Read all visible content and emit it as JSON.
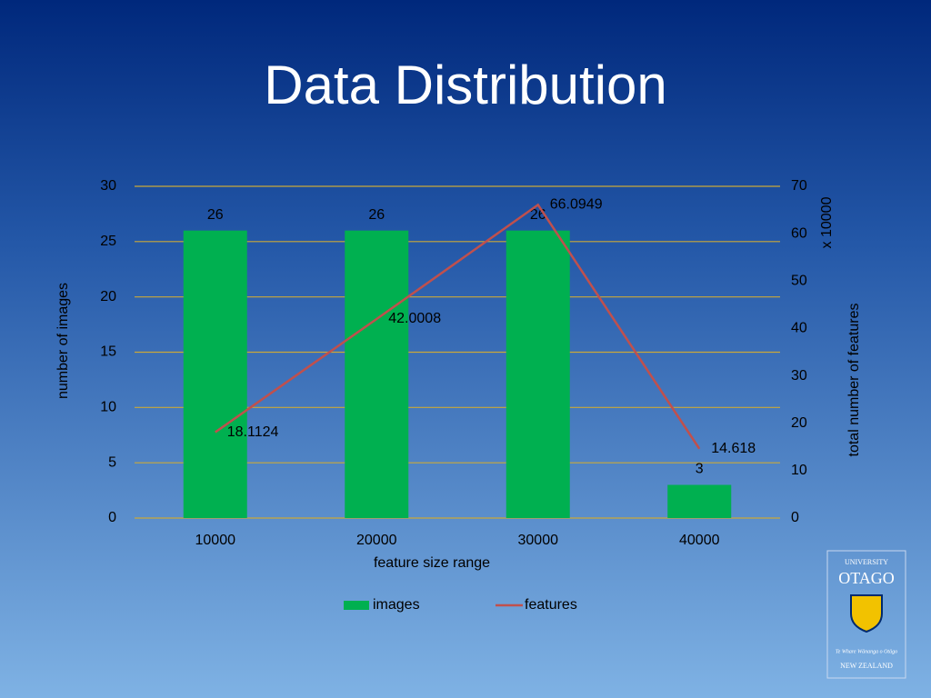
{
  "chart_data": {
    "type": "bar",
    "title": "Data Distribution",
    "x_label": "feature size range",
    "y_label": "number of images",
    "y2_label": "total number of features",
    "y2_multiplier_label": "x 10000",
    "categories": [
      "10000",
      "20000",
      "30000",
      "40000"
    ],
    "series": [
      {
        "name": "images",
        "type": "bar",
        "color": "#00b050",
        "values": [
          26,
          26,
          26,
          3
        ]
      },
      {
        "name": "features",
        "type": "line",
        "color": "#c0504d",
        "values": [
          18.1124,
          42.0008,
          66.0949,
          14.618
        ],
        "axis": "y2"
      }
    ],
    "ylim": [
      0,
      30
    ],
    "yticks": [
      0,
      5,
      10,
      15,
      20,
      25,
      30
    ],
    "y2lim": [
      0,
      70
    ],
    "y2ticks": [
      0,
      10,
      20,
      30,
      40,
      50,
      60,
      70
    ],
    "grid": true,
    "grid_color": "#c9a83a",
    "legend": "bottom"
  },
  "logo": {
    "line1": "UNIVERSITY",
    "line2": "OTAGO",
    "motto": "Te Whare Wānanga o Otāgo",
    "line3": "NEW ZEALAND"
  }
}
